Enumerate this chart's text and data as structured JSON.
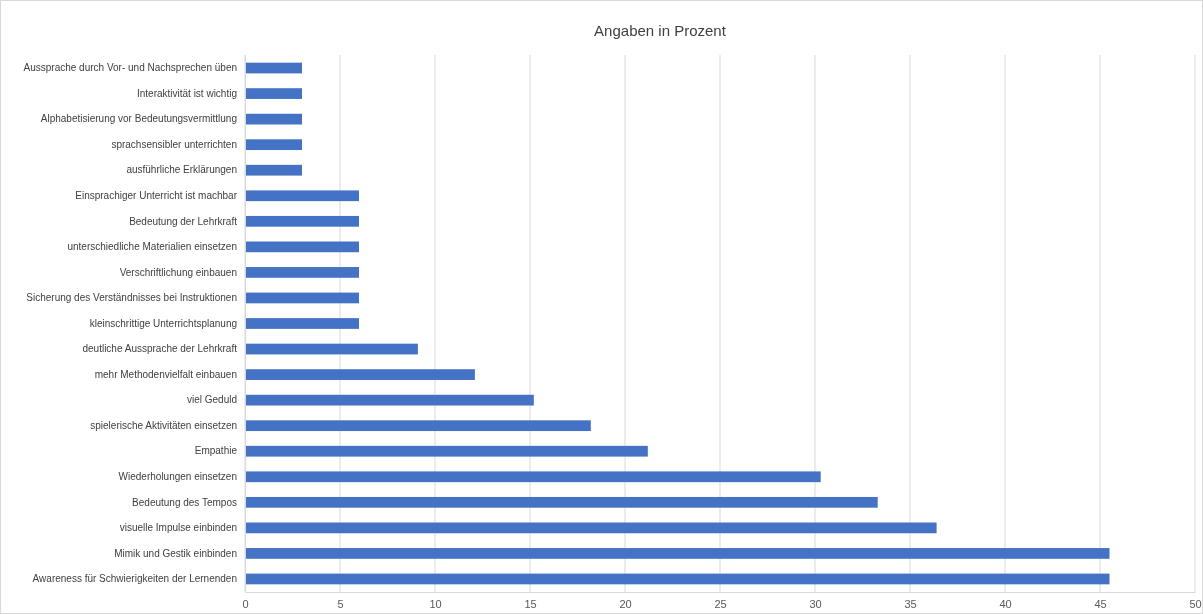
{
  "chart_data": {
    "type": "bar",
    "orientation": "horizontal",
    "title": "Angaben in Prozent",
    "categories": [
      "Aussprache durch Vor- und Nachsprechen üben",
      "Interaktivität ist wichtig",
      "Alphabetisierung vor Bedeutungsvermittlung",
      "sprachsensibler unterrichten",
      "ausführliche Erklärungen",
      "Einsprachiger Unterricht ist machbar",
      "Bedeutung der Lehrkraft",
      "unterschiedliche Materialien einsetzen",
      "Verschriftlichung einbauen",
      "Sicherung des Verständnisses bei Instruktionen",
      "kleinschrittige Unterrichtsplanung",
      "deutliche Aussprache der Lehrkraft",
      "mehr Methodenvielfalt einbauen",
      "viel Geduld",
      "spielerische Aktivitäten einsetzen",
      "Empathie",
      "Wiederholungen einsetzen",
      "Bedeutung des Tempos",
      "visuelle Impulse einbinden",
      "Mimik und Gestik einbinden",
      "Awareness für Schwierigkeiten der Lernenden"
    ],
    "values": [
      3,
      3,
      3,
      3,
      3,
      6,
      6,
      6,
      6,
      6,
      6,
      9.1,
      12.1,
      15.2,
      18.2,
      21.2,
      30.3,
      33.3,
      36.4,
      45.5,
      45.5
    ],
    "color": "#4472c4",
    "xlim": [
      0,
      50
    ],
    "xticks": [
      0,
      5,
      10,
      15,
      20,
      25,
      30,
      35,
      40,
      45,
      50
    ],
    "grid": "x"
  }
}
